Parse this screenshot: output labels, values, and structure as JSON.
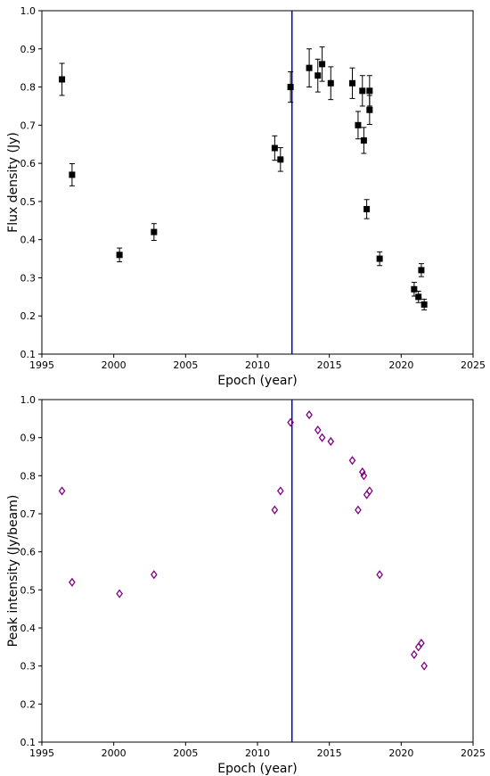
{
  "chart_data": [
    {
      "type": "scatter",
      "xlabel": "Epoch (year)",
      "ylabel": "Flux density (Jy)",
      "xlim": [
        1995,
        2025
      ],
      "ylim": [
        0.1,
        1.0
      ],
      "xticks": [
        1995,
        2000,
        2005,
        2010,
        2015,
        2020,
        2025
      ],
      "yticks": [
        0.1,
        0.2,
        0.3,
        0.4,
        0.5,
        0.6,
        0.7,
        0.8,
        0.9,
        1.0
      ],
      "grid": false,
      "marker": "filled-square",
      "marker_color": "#000000",
      "error_bars": true,
      "vline": {
        "x": 2012.4,
        "color": "#0000cc"
      },
      "points": [
        {
          "x": 1996.4,
          "y": 0.82,
          "err": 0.042
        },
        {
          "x": 1997.1,
          "y": 0.57,
          "err": 0.029
        },
        {
          "x": 2000.4,
          "y": 0.36,
          "err": 0.018
        },
        {
          "x": 2002.8,
          "y": 0.42,
          "err": 0.022
        },
        {
          "x": 2011.2,
          "y": 0.64,
          "err": 0.032
        },
        {
          "x": 2011.6,
          "y": 0.61,
          "err": 0.031
        },
        {
          "x": 2012.3,
          "y": 0.8,
          "err": 0.04
        },
        {
          "x": 2013.6,
          "y": 0.85,
          "err": 0.05
        },
        {
          "x": 2014.2,
          "y": 0.83,
          "err": 0.043
        },
        {
          "x": 2014.5,
          "y": 0.86,
          "err": 0.045
        },
        {
          "x": 2015.1,
          "y": 0.81,
          "err": 0.043
        },
        {
          "x": 2016.6,
          "y": 0.81,
          "err": 0.04
        },
        {
          "x": 2017.0,
          "y": 0.7,
          "err": 0.036
        },
        {
          "x": 2017.3,
          "y": 0.79,
          "err": 0.04
        },
        {
          "x": 2017.4,
          "y": 0.66,
          "err": 0.034
        },
        {
          "x": 2017.6,
          "y": 0.48,
          "err": 0.025
        },
        {
          "x": 2017.8,
          "y": 0.74,
          "err": 0.038
        },
        {
          "x": 2017.8,
          "y": 0.79,
          "err": 0.04
        },
        {
          "x": 2018.5,
          "y": 0.35,
          "err": 0.018
        },
        {
          "x": 2020.9,
          "y": 0.27,
          "err": 0.018
        },
        {
          "x": 2021.2,
          "y": 0.25,
          "err": 0.015
        },
        {
          "x": 2021.4,
          "y": 0.32,
          "err": 0.017
        },
        {
          "x": 2021.6,
          "y": 0.23,
          "err": 0.014
        }
      ]
    },
    {
      "type": "scatter",
      "xlabel": "Epoch (year)",
      "ylabel": "Peak intensity (Jy/beam)",
      "xlim": [
        1995,
        2025
      ],
      "ylim": [
        0.1,
        1.0
      ],
      "xticks": [
        1995,
        2000,
        2005,
        2010,
        2015,
        2020,
        2025
      ],
      "yticks": [
        0.1,
        0.2,
        0.3,
        0.4,
        0.5,
        0.6,
        0.7,
        0.8,
        0.9,
        1.0
      ],
      "grid": false,
      "marker": "open-diamond",
      "marker_color": "#800080",
      "error_bars": false,
      "vline": {
        "x": 2012.4,
        "color": "#0000cc"
      },
      "points": [
        {
          "x": 1996.4,
          "y": 0.76
        },
        {
          "x": 1997.1,
          "y": 0.52
        },
        {
          "x": 2000.4,
          "y": 0.49
        },
        {
          "x": 2002.8,
          "y": 0.54
        },
        {
          "x": 2011.2,
          "y": 0.71
        },
        {
          "x": 2011.6,
          "y": 0.76
        },
        {
          "x": 2012.3,
          "y": 0.94
        },
        {
          "x": 2013.6,
          "y": 0.96
        },
        {
          "x": 2014.2,
          "y": 0.92
        },
        {
          "x": 2014.5,
          "y": 0.9
        },
        {
          "x": 2015.1,
          "y": 0.89
        },
        {
          "x": 2016.6,
          "y": 0.84
        },
        {
          "x": 2017.0,
          "y": 0.71
        },
        {
          "x": 2017.3,
          "y": 0.81
        },
        {
          "x": 2017.4,
          "y": 0.8
        },
        {
          "x": 2017.6,
          "y": 0.75
        },
        {
          "x": 2017.8,
          "y": 0.76
        },
        {
          "x": 2018.5,
          "y": 0.54
        },
        {
          "x": 2020.9,
          "y": 0.33
        },
        {
          "x": 2021.2,
          "y": 0.35
        },
        {
          "x": 2021.4,
          "y": 0.36
        },
        {
          "x": 2021.6,
          "y": 0.3
        }
      ]
    }
  ]
}
